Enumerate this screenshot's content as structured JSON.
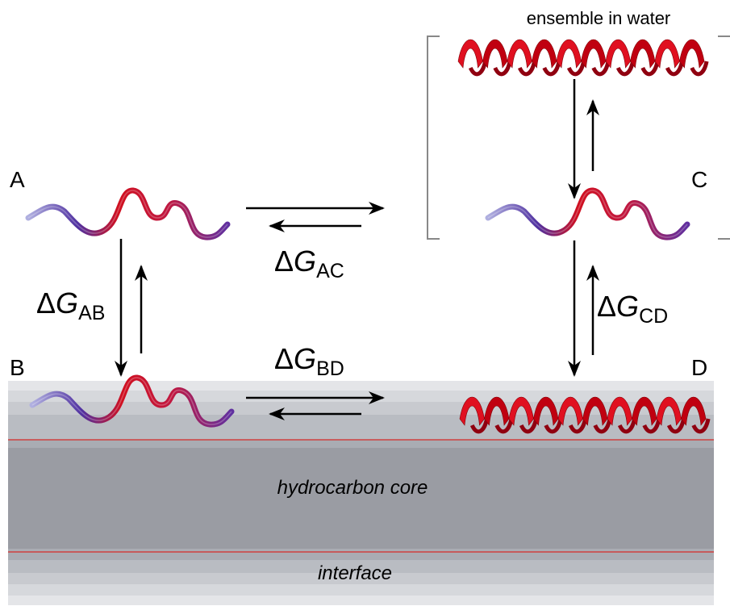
{
  "ensemble_label": "ensemble in water",
  "states": [
    "A",
    "B",
    "C",
    "D"
  ],
  "energies": {
    "AC": {
      "delta": "Δ",
      "symbol": "G",
      "subscript": "AC"
    },
    "AB": {
      "delta": "Δ",
      "symbol": "G",
      "subscript": "AB"
    },
    "CD": {
      "delta": "Δ",
      "symbol": "G",
      "subscript": "CD"
    },
    "BD": {
      "delta": "Δ",
      "symbol": "G",
      "subscript": "BD"
    }
  },
  "membrane": {
    "core": "hydrocarbon core",
    "interface": "interface"
  }
}
